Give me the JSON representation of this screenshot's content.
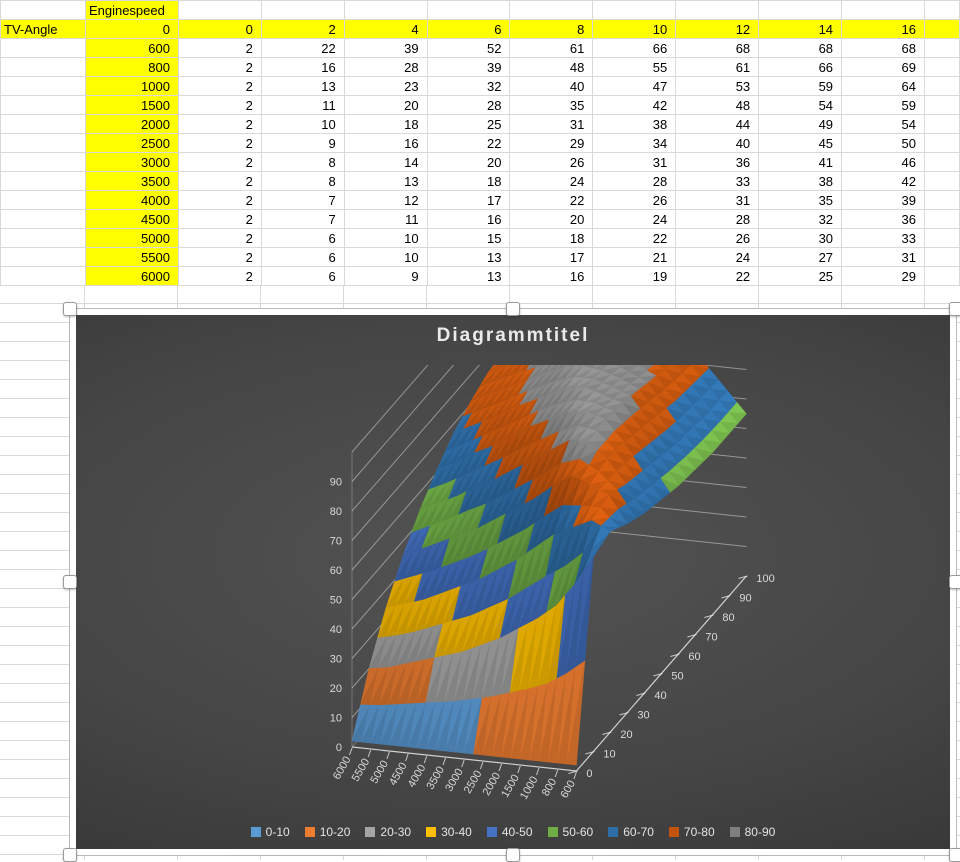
{
  "sheet": {
    "corner_cell": "",
    "enginespeed_label": "Enginespeed",
    "tv_angle_label": "TV-Angle",
    "header_b_value": "0",
    "tv_angle_columns": [
      "0",
      "2",
      "4",
      "6",
      "8",
      "10",
      "12",
      "14",
      "16"
    ],
    "rows": [
      {
        "speed": "600",
        "values": [
          2,
          22,
          39,
          52,
          61,
          66,
          68,
          68,
          68
        ]
      },
      {
        "speed": "800",
        "values": [
          2,
          16,
          28,
          39,
          48,
          55,
          61,
          66,
          69
        ]
      },
      {
        "speed": "1000",
        "values": [
          2,
          13,
          23,
          32,
          40,
          47,
          53,
          59,
          64
        ]
      },
      {
        "speed": "1500",
        "values": [
          2,
          11,
          20,
          28,
          35,
          42,
          48,
          54,
          59
        ]
      },
      {
        "speed": "2000",
        "values": [
          2,
          10,
          18,
          25,
          31,
          38,
          44,
          49,
          54
        ]
      },
      {
        "speed": "2500",
        "values": [
          2,
          9,
          16,
          22,
          29,
          34,
          40,
          45,
          50
        ]
      },
      {
        "speed": "3000",
        "values": [
          2,
          8,
          14,
          20,
          26,
          31,
          36,
          41,
          46
        ]
      },
      {
        "speed": "3500",
        "values": [
          2,
          8,
          13,
          18,
          24,
          28,
          33,
          38,
          42
        ]
      },
      {
        "speed": "4000",
        "values": [
          2,
          7,
          12,
          17,
          22,
          26,
          31,
          35,
          39
        ]
      },
      {
        "speed": "4500",
        "values": [
          2,
          7,
          11,
          16,
          20,
          24,
          28,
          32,
          36
        ]
      },
      {
        "speed": "5000",
        "values": [
          2,
          6,
          10,
          15,
          18,
          22,
          26,
          30,
          33
        ]
      },
      {
        "speed": "5500",
        "values": [
          2,
          6,
          10,
          13,
          17,
          21,
          24,
          27,
          31
        ]
      },
      {
        "speed": "6000",
        "values": [
          2,
          6,
          9,
          13,
          16,
          19,
          22,
          25,
          29
        ]
      }
    ],
    "colors": {
      "highlight": "#ffff00",
      "gridline": "#d9d9d9",
      "text": "#000000"
    }
  },
  "chart": {
    "title": "Diagrammtitel",
    "background_dark": "#3a3a3a",
    "axis_text_color": "#d9d9d9",
    "legend": [
      {
        "label": "0-10",
        "color": "#5B9BD5"
      },
      {
        "label": "10-20",
        "color": "#ED7D31"
      },
      {
        "label": "20-30",
        "color": "#A5A5A5"
      },
      {
        "label": "30-40",
        "color": "#FFC000"
      },
      {
        "label": "40-50",
        "color": "#4472C4"
      },
      {
        "label": "50-60",
        "color": "#70AD47"
      },
      {
        "label": "60-70",
        "color": "#2E6DA6"
      },
      {
        "label": "70-80",
        "color": "#C2540E"
      },
      {
        "label": "80-90",
        "color": "#7F7F7F"
      }
    ],
    "value_axis_labels": [
      "0",
      "10",
      "20",
      "30",
      "40",
      "50",
      "60",
      "70",
      "80",
      "90"
    ],
    "depth_axis_labels": [
      "0",
      "10",
      "20",
      "30",
      "40",
      "50",
      "60",
      "70",
      "80",
      "90",
      "100"
    ],
    "category_axis_labels": [
      "6000",
      "5500",
      "5000",
      "4500",
      "4000",
      "3500",
      "3000",
      "2500",
      "2000",
      "1500",
      "1000",
      "800",
      "600"
    ],
    "chart_data": {
      "type": "surface",
      "title": "Diagrammtitel",
      "categories": [
        "6000",
        "5500",
        "5000",
        "4500",
        "4000",
        "3500",
        "3000",
        "2500",
        "2000",
        "1500",
        "1000",
        "800",
        "600"
      ],
      "series_axis_range": [
        0,
        100
      ],
      "value_axis_range": [
        0,
        100
      ],
      "bands": [
        "0-10",
        "10-20",
        "20-30",
        "30-40",
        "40-50",
        "50-60",
        "60-70",
        "70-80",
        "80-90"
      ],
      "table": {
        "tv_angles": [
          0,
          2,
          4,
          6,
          8,
          10,
          12,
          14,
          16
        ],
        "engine_speeds": [
          600,
          800,
          1000,
          1500,
          2000,
          2500,
          3000,
          3500,
          4000,
          4500,
          5000,
          5500,
          6000
        ],
        "values": [
          [
            2,
            22,
            39,
            52,
            61,
            66,
            68,
            68,
            68
          ],
          [
            2,
            16,
            28,
            39,
            48,
            55,
            61,
            66,
            69
          ],
          [
            2,
            13,
            23,
            32,
            40,
            47,
            53,
            59,
            64
          ],
          [
            2,
            11,
            20,
            28,
            35,
            42,
            48,
            54,
            59
          ],
          [
            2,
            10,
            18,
            25,
            31,
            38,
            44,
            49,
            54
          ],
          [
            2,
            9,
            16,
            22,
            29,
            34,
            40,
            45,
            50
          ],
          [
            2,
            8,
            14,
            20,
            26,
            31,
            36,
            41,
            46
          ],
          [
            2,
            8,
            13,
            18,
            24,
            28,
            33,
            38,
            42
          ],
          [
            2,
            7,
            12,
            17,
            22,
            26,
            31,
            35,
            39
          ],
          [
            2,
            7,
            11,
            16,
            20,
            24,
            28,
            32,
            36
          ],
          [
            2,
            6,
            10,
            15,
            18,
            22,
            26,
            30,
            33
          ],
          [
            2,
            6,
            10,
            13,
            17,
            21,
            24,
            27,
            31
          ],
          [
            2,
            6,
            9,
            13,
            16,
            19,
            22,
            25,
            29
          ]
        ]
      },
      "display_surface": {
        "t_values": [
          0,
          10,
          20,
          30,
          40,
          50,
          60,
          70,
          80,
          90,
          100
        ],
        "columns": [
          "6000",
          "5500",
          "5000",
          "4500",
          "4000",
          "3500",
          "3000",
          "2500",
          "2000",
          "1500",
          "1000",
          "800",
          "600"
        ],
        "matrix": [
          [
            2,
            2,
            2,
            2,
            2,
            2,
            2,
            2,
            2,
            2,
            2,
            2,
            2
          ],
          [
            20,
            21,
            23,
            25,
            27,
            29,
            32,
            35,
            39,
            43,
            48,
            56,
            66
          ],
          [
            34,
            36,
            38,
            41,
            44,
            47,
            51,
            55,
            60,
            65,
            68,
            71,
            68
          ],
          [
            45,
            48,
            51,
            54,
            57,
            61,
            65,
            69,
            74,
            78,
            76,
            73,
            64
          ],
          [
            54,
            57,
            60,
            64,
            67,
            71,
            75,
            79,
            83,
            83,
            78,
            70,
            61
          ],
          [
            61,
            64,
            68,
            71,
            75,
            79,
            82,
            85,
            86,
            84,
            77,
            68,
            59
          ],
          [
            67,
            70,
            73,
            77,
            80,
            83,
            86,
            87,
            85,
            83,
            75,
            66,
            57
          ],
          [
            71,
            74,
            77,
            80,
            83,
            86,
            87,
            86,
            84,
            81,
            73,
            64,
            56
          ],
          [
            74,
            77,
            80,
            82,
            85,
            87,
            86,
            85,
            82,
            79,
            71,
            63,
            55
          ],
          [
            75,
            78,
            81,
            83,
            85,
            86,
            85,
            83,
            80,
            77,
            70,
            62,
            55
          ],
          [
            75,
            77,
            80,
            82,
            84,
            85,
            84,
            82,
            79,
            76,
            69,
            62,
            55
          ]
        ]
      }
    }
  }
}
